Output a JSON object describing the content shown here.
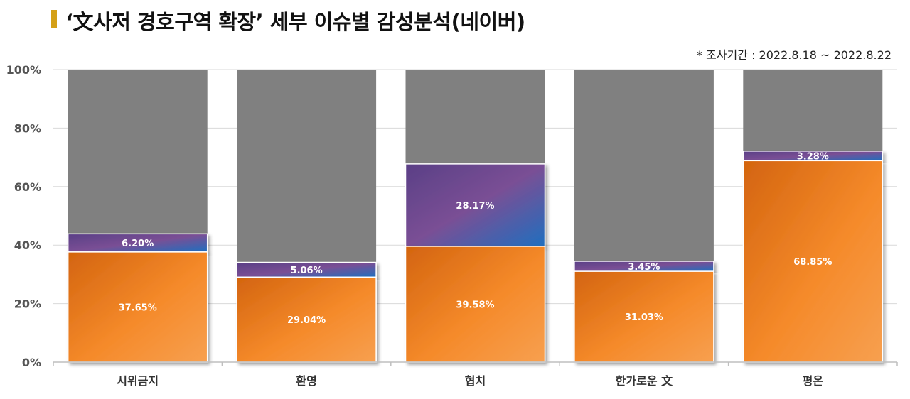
{
  "header": {
    "title": "‘文사저 경호구역 확장’ 세부 이슈별 감성분석(네이버)",
    "period": "* 조사기간 : 2022.8.18 ~ 2022.8.22"
  },
  "colors": {
    "negative_gradient": [
      "#d3640f",
      "#f58a2a",
      "#f7a050"
    ],
    "positive_gradient": [
      "#5a3f86",
      "#7a4f95",
      "#1f6fbf"
    ],
    "neutral": "#808080"
  },
  "chart_data": {
    "type": "bar",
    "stacked": true,
    "categories": [
      "시위금지",
      "환영",
      "협치",
      "한가로운 文",
      "평온"
    ],
    "series": [
      {
        "values": [
          37.65,
          29.04,
          39.58,
          31.03,
          68.85
        ],
        "labels": [
          "37.65%",
          "29.04%",
          "39.58%",
          "31.03%",
          "68.85%"
        ]
      },
      {
        "values": [
          6.2,
          5.06,
          28.17,
          3.45,
          3.28
        ],
        "labels": [
          "6.20%",
          "5.06%",
          "28.17%",
          "3.45%",
          "3.28%"
        ]
      },
      {
        "values": [
          56.15,
          65.9,
          32.25,
          65.52,
          27.87
        ]
      }
    ],
    "yticks": [
      "0%",
      "20%",
      "40%",
      "60%",
      "80%",
      "100%"
    ],
    "ylim": [
      0,
      100
    ],
    "grid": true
  }
}
